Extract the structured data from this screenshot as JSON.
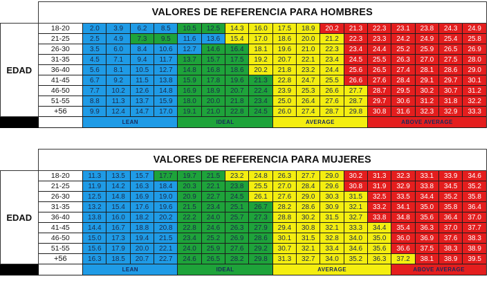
{
  "men": {
    "title": "VALORES DE REFERENCIA PARA HOMBRES",
    "edad_label": "EDAD",
    "ages": [
      "18-20",
      "21-25",
      "26-30",
      "31-35",
      "36-40",
      "41-45",
      "46-50",
      "51-55",
      "+56"
    ],
    "rows": [
      [
        "2.0",
        "3.9",
        "6.2",
        "8.5",
        "10.5",
        "12.5",
        "14.3",
        "16.0",
        "17.5",
        "18.9",
        "20.2",
        "21.3",
        "22.3",
        "23.1",
        "23.8",
        "24.3",
        "24.9"
      ],
      [
        "2.5",
        "4.9",
        "7.3",
        "9.5",
        "11.6",
        "13.6",
        "15.4",
        "17.0",
        "18.6",
        "20.0",
        "21.2",
        "22.3",
        "23.3",
        "24.2",
        "24.9",
        "25.4",
        "25.8"
      ],
      [
        "3.5",
        "6.0",
        "8.4",
        "10.6",
        "12.7",
        "14.6",
        "16.4",
        "18.1",
        "19.6",
        "21.0",
        "22.3",
        "23.4",
        "24.4",
        "25.2",
        "25.9",
        "26.5",
        "26.9"
      ],
      [
        "4.5",
        "7.1",
        "9.4",
        "11.7",
        "13.7",
        "15.7",
        "17.5",
        "19.2",
        "20.7",
        "22.1",
        "23.4",
        "24.5",
        "25.5",
        "26.3",
        "27.0",
        "27.5",
        "28.0"
      ],
      [
        "5.6",
        "8.1",
        "10.5",
        "12.7",
        "14.8",
        "16.8",
        "18.6",
        "20.2",
        "21.8",
        "23.2",
        "24.4",
        "25.6",
        "26.5",
        "27.4",
        "28.1",
        "28.6",
        "29.0"
      ],
      [
        "6.7",
        "9.2",
        "11.5",
        "13.8",
        "15.9",
        "17.8",
        "19.6",
        "21.3",
        "22.8",
        "24.7",
        "25.5",
        "26.6",
        "27.6",
        "28.4",
        "29.1",
        "29.7",
        "30.1"
      ],
      [
        "7.7",
        "10.2",
        "12.6",
        "14.8",
        "16.9",
        "18.9",
        "20.7",
        "22.4",
        "23.9",
        "25.3",
        "26.6",
        "27.7",
        "28.7",
        "29.5",
        "30.2",
        "30.7",
        "31.2"
      ],
      [
        "8.8",
        "11.3",
        "13.7",
        "15.9",
        "18.0",
        "20.0",
        "21.8",
        "23.4",
        "25.0",
        "26.4",
        "27.6",
        "28.7",
        "29.7",
        "30.6",
        "31.2",
        "31.8",
        "32.2"
      ],
      [
        "9.9",
        "12.4",
        "14.7",
        "17.0",
        "19.1",
        "21.0",
        "22.8",
        "24.5",
        "26.0",
        "27.4",
        "28.7",
        "29.8",
        "30.8",
        "31.6",
        "32.3",
        "32.9",
        "33.3"
      ]
    ],
    "colors": [
      "LLLLIIAAAARRRRRRR",
      "LLIILLAAAAARRRRRR",
      "LLLLLIIAAAARRRRRR",
      "LLLLIIIAAAARRRRRR",
      "LLLLIIIAAAARRRRRR",
      "LLLLIIIIAAARRRRRR",
      "LLLLIIIIAAAARRRRR",
      "LLLLIIIIAAAARRRRR",
      "LLLLIIIIAAAARRRRR"
    ],
    "labels": {
      "lean": "LEAN",
      "ideal": "IDEAL",
      "average": "AVERAGE",
      "above": "ABOVE AVERAGE"
    }
  },
  "women": {
    "title": "VALORES DE REFERENCIA PARA MUJERES",
    "edad_label": "EDAD",
    "ages": [
      "18-20",
      "21-25",
      "26-30",
      "31-35",
      "36-40",
      "41-45",
      "46-50",
      "51-55",
      "+56"
    ],
    "rows": [
      [
        "11.3",
        "13.5",
        "15.7",
        "17.7",
        "19.7",
        "21.5",
        "23.2",
        "24.8",
        "26.3",
        "27.7",
        "29.0",
        "30.2",
        "31.3",
        "32.3",
        "33.1",
        "33.9",
        "34.6"
      ],
      [
        "11.9",
        "14.2",
        "16.3",
        "18.4",
        "20.3",
        "22.1",
        "23.8",
        "25.5",
        "27.0",
        "28.4",
        "29.6",
        "30.8",
        "31.9",
        "32.9",
        "33.8",
        "34.5",
        "35.2"
      ],
      [
        "12.5",
        "14.8",
        "16.9",
        "19.0",
        "20.9",
        "22.7",
        "24.5",
        "26.1",
        "27.6",
        "29.0",
        "30.3",
        "31.5",
        "32.5",
        "33.5",
        "34.4",
        "35.2",
        "35.8"
      ],
      [
        "13.2",
        "15.4",
        "17.6",
        "19.6",
        "21.5",
        "23.4",
        "25.1",
        "26.7",
        "28.2",
        "28.6",
        "30.9",
        "32.1",
        "33.2",
        "34.1",
        "35.0",
        "35.8",
        "36.4"
      ],
      [
        "13.8",
        "16.0",
        "18.2",
        "20.2",
        "22.2",
        "24.0",
        "25.7",
        "27.3",
        "28.8",
        "30.2",
        "31.5",
        "32.7",
        "33.8",
        "34.8",
        "35.6",
        "36.4",
        "37.0"
      ],
      [
        "14.4",
        "16.7",
        "18.8",
        "20.8",
        "22.8",
        "24.6",
        "26.3",
        "27.9",
        "29.4",
        "30.8",
        "32.1",
        "33.3",
        "34.4",
        "35.4",
        "36.3",
        "37.0",
        "37.7"
      ],
      [
        "15.0",
        "17.3",
        "19.4",
        "21.5",
        "23.4",
        "25.2",
        "26.9",
        "28.6",
        "30.1",
        "31.5",
        "32.8",
        "34.0",
        "35.0",
        "36.0",
        "36.9",
        "37.6",
        "38.3"
      ],
      [
        "15.6",
        "17.9",
        "20.0",
        "22.1",
        "24.0",
        "25.9",
        "27.6",
        "29.2",
        "30.7",
        "32.1",
        "33.4",
        "34.6",
        "35.6",
        "36.6",
        "37.5",
        "38.3",
        "38.9"
      ],
      [
        "16.3",
        "18.5",
        "20.7",
        "22.7",
        "24.6",
        "26.5",
        "28.2",
        "29.8",
        "31.3",
        "32.7",
        "34.0",
        "35.2",
        "36.3",
        "37.2",
        "38.1",
        "38.9",
        "39.5"
      ]
    ],
    "colors": [
      "LLLIIIAAAAARRRRRR",
      "LLLLIIIAAAARRRRRR",
      "LLLLIIIAAAAARRRRR",
      "LLLLIIIIAAAARRRRR",
      "LLLLIIIIAAAARRRRR",
      "LLLLIIIIAAAAARRRR",
      "LLLLIIIIAAAAARRRR",
      "LLLLIIIIAAAAARRRR",
      "LLLLIIIIAAAAAARRR"
    ],
    "labels": {
      "lean": "LEAN",
      "ideal": "IDEAL",
      "average": "AVERAGE",
      "above": "ABOVE AVERAGE"
    }
  }
}
